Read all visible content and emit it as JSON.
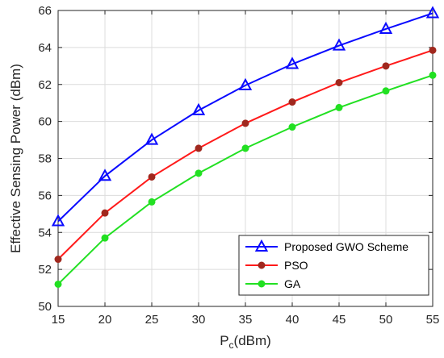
{
  "chart_data": {
    "type": "line",
    "xlabel": "P",
    "xlabel_sub": "c",
    "xlabel_unit": "(dBm)",
    "ylabel": "Effective Sensing Power (dBm)",
    "xlim": [
      15,
      55
    ],
    "ylim": [
      50,
      66
    ],
    "xticks": [
      15,
      20,
      25,
      30,
      35,
      40,
      45,
      50,
      55
    ],
    "yticks": [
      50,
      52,
      54,
      56,
      58,
      60,
      62,
      64,
      66
    ],
    "grid": true,
    "legend_position": "bottom-right",
    "x": [
      15,
      20,
      25,
      30,
      35,
      40,
      45,
      50,
      55
    ],
    "series": [
      {
        "name": "Proposed GWO Scheme",
        "color": "#0a0aff",
        "marker": "triangle",
        "values": [
          54.6,
          57.05,
          59.0,
          60.6,
          61.95,
          63.1,
          64.1,
          65.0,
          65.85
        ]
      },
      {
        "name": "PSO",
        "color": "#ff1a1a",
        "marker_color": "#a0281e",
        "marker": "circle",
        "values": [
          52.55,
          55.05,
          57.0,
          58.55,
          59.9,
          61.05,
          62.1,
          63.0,
          63.85
        ]
      },
      {
        "name": "GA",
        "color": "#22e022",
        "marker": "circle",
        "values": [
          51.2,
          53.7,
          55.65,
          57.2,
          58.55,
          59.7,
          60.75,
          61.65,
          62.5
        ]
      }
    ]
  }
}
